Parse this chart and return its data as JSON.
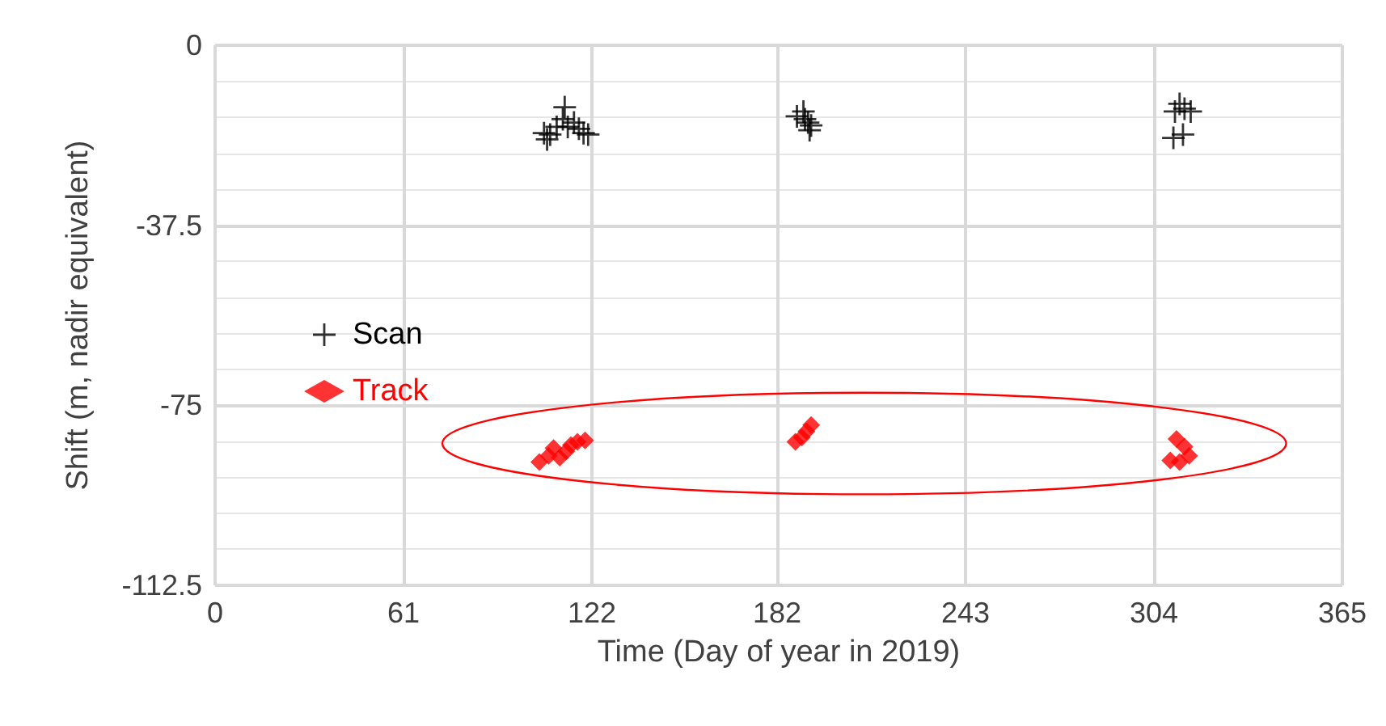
{
  "chart_data": {
    "type": "scatter",
    "xlabel": "Time (Day of year in 2019)",
    "ylabel": "Shift (m, nadir equivalent)",
    "xlim": [
      0,
      365
    ],
    "xticks": [
      0,
      61,
      122,
      182,
      243,
      304,
      365
    ],
    "ylim": [
      -112.5,
      0
    ],
    "yticks": [
      -112.5,
      -75,
      -37.5,
      0
    ],
    "grid": true,
    "legend": "left",
    "series": [
      {
        "name": "Scan",
        "color": "#000000",
        "marker": "cross",
        "x": [
          106.5,
          108.5,
          110.6,
          113.2,
          112.6,
          114.2,
          116.2,
          117.8,
          119.3,
          120.8,
          107.5,
          188.4,
          190.5,
          191.0,
          192.0,
          193.0,
          192.5,
          310.8,
          312.3,
          313.9,
          315.9,
          310.3,
          313.4
        ],
        "values": [
          -18.3,
          -18.6,
          -17.0,
          -12.9,
          -15.4,
          -17.0,
          -16.1,
          -17.4,
          -18.3,
          -18.6,
          -19.6,
          -14.8,
          -13.8,
          -15.4,
          -16.1,
          -16.7,
          -17.7,
          -13.8,
          -12.2,
          -13.2,
          -13.8,
          -19.3,
          -18.6
        ]
      },
      {
        "name": "Track",
        "color": "#ff0000",
        "marker": "diamond",
        "x": [
          105.0,
          108.0,
          109.6,
          111.6,
          113.7,
          115.2,
          117.3,
          119.8,
          187.9,
          190.0,
          191.5,
          193.0,
          311.3,
          313.9,
          315.4,
          309.3,
          312.3
        ],
        "values": [
          -86.8,
          -85.5,
          -83.9,
          -85.9,
          -84.6,
          -83.3,
          -82.6,
          -82.3,
          -82.6,
          -81.7,
          -80.4,
          -79.1,
          -82.0,
          -83.6,
          -85.5,
          -86.5,
          -86.8
        ]
      }
    ]
  }
}
